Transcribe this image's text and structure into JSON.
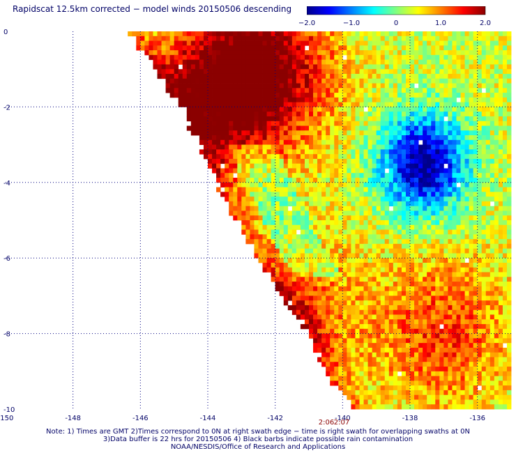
{
  "title": "Rapidscat 12.5km corrected − model winds 20150506 descending",
  "colorbar": {
    "min": -2.0,
    "max": 2.0,
    "tick_labels": [
      "−2.0",
      "−1.0",
      "0",
      "1.0",
      "2.0"
    ],
    "tick_values": [
      -2.0,
      -1.0,
      0,
      1.0,
      2.0
    ],
    "colormap": [
      "#00008b",
      "#0000ff",
      "#0080ff",
      "#00ffff",
      "#80ff80",
      "#ffff00",
      "#ff8000",
      "#ff0000",
      "#8b0000"
    ]
  },
  "chart_data": {
    "type": "heatmap",
    "title": "Rapidscat 12.5km corrected − model winds 20150506 descending",
    "xlim": [
      -150,
      -135
    ],
    "ylim": [
      -10,
      0
    ],
    "x_ticks": [
      -150,
      -148,
      -146,
      -144,
      -142,
      -140,
      -138,
      -136
    ],
    "x_tick_labels": [
      "-150",
      "-148",
      "-146",
      "-144",
      "-142",
      "-140",
      "-138",
      "-136"
    ],
    "y_ticks": [
      0,
      -2,
      -4,
      -6,
      -8,
      -10
    ],
    "y_tick_labels": [
      "0",
      "-2",
      "-4",
      "-6",
      "-8",
      "-10"
    ],
    "grid": true,
    "swath_left_edge": [
      {
        "lat": 0,
        "lon": -146.4
      },
      {
        "lat": -2,
        "lon": -144.8
      },
      {
        "lat": -4,
        "lon": -143.7
      },
      {
        "lat": -6,
        "lon": -142.6
      },
      {
        "lat": -8,
        "lon": -141.0
      },
      {
        "lat": -9,
        "lon": -140.5
      },
      {
        "lat": -10,
        "lon": -139.7
      }
    ],
    "features": [
      {
        "type": "high",
        "lon_center": -142.3,
        "lat_center": -1.0,
        "value": 2.0
      },
      {
        "type": "high",
        "lon_center": -144.0,
        "lat_center": -1.8,
        "value": 1.8
      },
      {
        "type": "low",
        "lon_center": -137.6,
        "lat_center": -3.5,
        "value": -2.0
      },
      {
        "type": "high",
        "lon_center": -137.0,
        "lat_center": -8.0,
        "value": 1.3
      },
      {
        "type": "high",
        "lon_center": -141.5,
        "lat_center": -7.5,
        "value": 1.3
      }
    ]
  },
  "swath_times": [
    "2:06",
    "2:07"
  ],
  "notes": [
    "Note: 1) Times are GMT 2)Times correspond to 0N at right swath edge − time is right swath for overlapping swaths at 0N",
    "3)Data buffer is 22 hrs for 20150506 4) Black barbs indicate possible rain contamination",
    "NOAA/NESDIS/Office of Research and Applications"
  ]
}
